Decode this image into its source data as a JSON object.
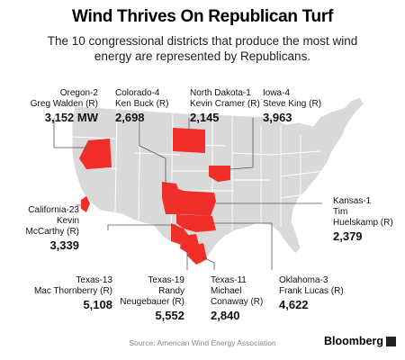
{
  "title": "Wind Thrives On Republican Turf",
  "subtitle": "The 10 congressional districts that produce the most wind energy are represented by Republicans.",
  "colors": {
    "district_fill": "#f02f2a",
    "state_fill": "#d9d9d9",
    "state_border": "#ffffff",
    "leader_line": "#555555"
  },
  "districts": [
    {
      "district": "Oregon-2",
      "rep_lines": [
        "Greg Walden (R)"
      ],
      "value": "3,152 MW"
    },
    {
      "district": "Colorado-4",
      "rep_lines": [
        "Ken Buck (R)"
      ],
      "value": "2,698"
    },
    {
      "district": "North Dakota-1",
      "rep_lines": [
        "Kevin Cramer (R)"
      ],
      "value": "2,145"
    },
    {
      "district": "Iowa-4",
      "rep_lines": [
        "Steve King (R)"
      ],
      "value": "3,963"
    },
    {
      "district": "California-23",
      "rep_lines": [
        "Kevin",
        "McCarthy (R)"
      ],
      "value": "3,339"
    },
    {
      "district": "Kansas-1",
      "rep_lines": [
        "Tim",
        "Huelskamp (R)"
      ],
      "value": "2,379"
    },
    {
      "district": "Texas-13",
      "rep_lines": [
        "Mac Thornberry (R)"
      ],
      "value": "5,108"
    },
    {
      "district": "Texas-19",
      "rep_lines": [
        "Randy",
        "Neugebauer (R)"
      ],
      "value": "5,552"
    },
    {
      "district": "Texas-11",
      "rep_lines": [
        "Michael",
        "Conaway (R)"
      ],
      "value": "2,840"
    },
    {
      "district": "Oklahoma-3",
      "rep_lines": [
        "Frank Lucas (R)"
      ],
      "value": "4,622"
    }
  ],
  "source": "Source: American Wind Energy Association",
  "brand": "Bloomberg"
}
